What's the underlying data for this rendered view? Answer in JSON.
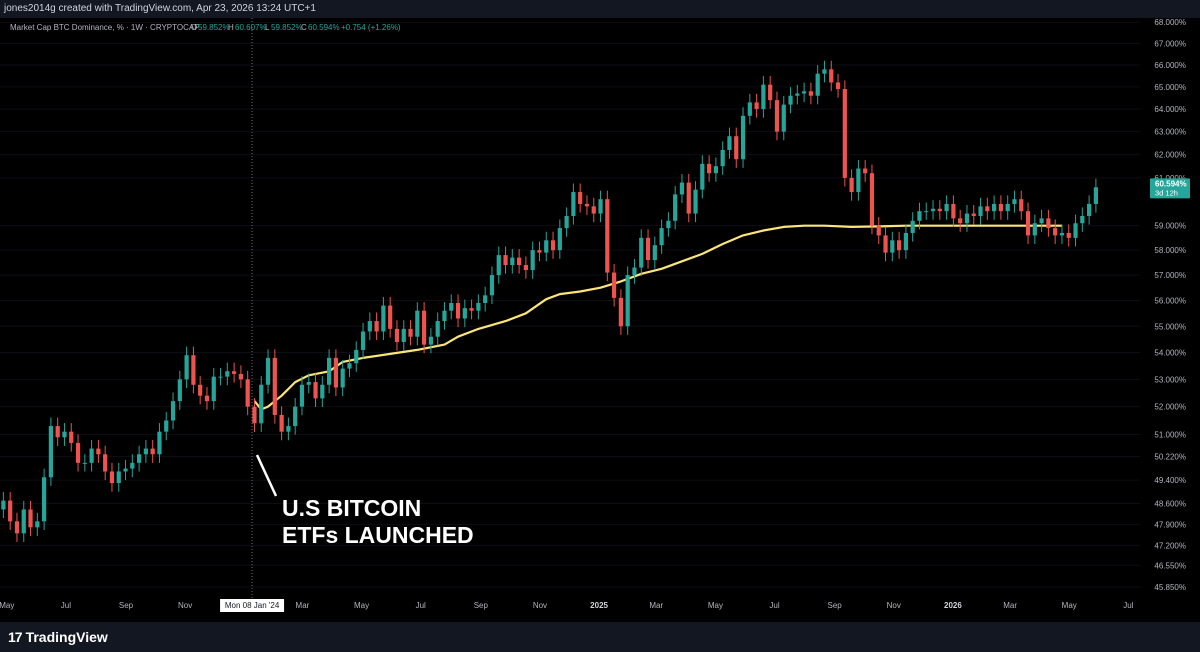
{
  "header": {
    "credit": "jones2014g created with TradingView.com, Apr 23, 2026 13:24 UTC+1"
  },
  "legend": {
    "title": "Market Cap BTC Dominance, %  · 1W · CRYPTOCAP",
    "o_label": "O",
    "o_value": "59.852%",
    "h_label": "H",
    "h_value": "60.607%",
    "l_label": "L",
    "l_value": "59.852%",
    "c_label": "C",
    "c_value": "60.594%",
    "change": "+0.754 (+1.26%)"
  },
  "price_tag": {
    "value": "60.594%",
    "countdown": "3d 12h"
  },
  "annotation": {
    "line1": "U.S BITCOIN",
    "line2": "ETFs LAUNCHED"
  },
  "crosshair": {
    "x_label": "Mon 08 Jan '24"
  },
  "footer": {
    "brand": "TradingView",
    "logo_mark": "17"
  },
  "colors": {
    "up": "#26a69a",
    "down": "#ef5350",
    "ma": "#fbe57a",
    "background": "#000000",
    "axis_text": "#b2b5be",
    "price_tag": "#26a69a"
  },
  "chart_data": {
    "type": "candlestick",
    "title": "",
    "ylabel": "",
    "xlabel": "",
    "y_scale": "log",
    "ylim": [
      45.5,
      68.2
    ],
    "xlim": [
      "2023-04-24",
      "2026-07-13"
    ],
    "y_ticks": [
      {
        "value": 68.0,
        "label": "68.000%"
      },
      {
        "value": 67.0,
        "label": "67.000%"
      },
      {
        "value": 66.0,
        "label": "66.000%"
      },
      {
        "value": 65.0,
        "label": "65.000%"
      },
      {
        "value": 64.0,
        "label": "64.000%"
      },
      {
        "value": 63.0,
        "label": "63.000%"
      },
      {
        "value": 62.0,
        "label": "62.000%"
      },
      {
        "value": 61.0,
        "label": "61.000%"
      },
      {
        "value": 59.0,
        "label": "59.000%"
      },
      {
        "value": 58.0,
        "label": "58.000%"
      },
      {
        "value": 57.0,
        "label": "57.000%"
      },
      {
        "value": 56.0,
        "label": "56.000%"
      },
      {
        "value": 55.0,
        "label": "55.000%"
      },
      {
        "value": 54.0,
        "label": "54.000%"
      },
      {
        "value": 53.0,
        "label": "53.000%"
      },
      {
        "value": 52.0,
        "label": "52.000%"
      },
      {
        "value": 51.0,
        "label": "51.000%"
      },
      {
        "value": 50.22,
        "label": "50.220%"
      },
      {
        "value": 49.4,
        "label": "49.400%"
      },
      {
        "value": 48.6,
        "label": "48.600%"
      },
      {
        "value": 47.9,
        "label": "47.900%"
      },
      {
        "value": 47.2,
        "label": "47.200%"
      },
      {
        "value": 46.55,
        "label": "46.550%"
      },
      {
        "value": 45.85,
        "label": "45.850%"
      }
    ],
    "x_ticks": [
      {
        "date": "2023-05-01",
        "label": "May"
      },
      {
        "date": "2023-07-01",
        "label": "Jul"
      },
      {
        "date": "2023-09-01",
        "label": "Sep"
      },
      {
        "date": "2023-11-01",
        "label": "Nov"
      },
      {
        "date": "2024-03-01",
        "label": "Mar"
      },
      {
        "date": "2024-05-01",
        "label": "May"
      },
      {
        "date": "2024-07-01",
        "label": "Jul"
      },
      {
        "date": "2024-09-01",
        "label": "Sep"
      },
      {
        "date": "2024-11-01",
        "label": "Nov"
      },
      {
        "date": "2025-01-01",
        "label": "2025",
        "bold": true
      },
      {
        "date": "2025-03-01",
        "label": "Mar"
      },
      {
        "date": "2025-05-01",
        "label": "May"
      },
      {
        "date": "2025-07-01",
        "label": "Jul"
      },
      {
        "date": "2025-09-01",
        "label": "Sep"
      },
      {
        "date": "2025-11-01",
        "label": "Nov"
      },
      {
        "date": "2026-01-01",
        "label": "2026",
        "bold": true
      },
      {
        "date": "2026-03-01",
        "label": "Mar"
      },
      {
        "date": "2026-05-01",
        "label": "May"
      },
      {
        "date": "2026-07-01",
        "label": "Jul"
      }
    ],
    "crosshair_date": "2024-01-08",
    "series": [
      {
        "kind": "candles",
        "first_week": "2023-04-24",
        "interval_days": 7,
        "close": [
          48.7,
          48.0,
          47.6,
          48.4,
          47.8,
          48.0,
          49.5,
          51.3,
          50.9,
          51.1,
          50.7,
          50.0,
          50.0,
          50.5,
          50.3,
          49.7,
          49.3,
          49.7,
          49.8,
          50.0,
          50.3,
          50.5,
          50.3,
          51.1,
          51.5,
          52.2,
          53.0,
          53.9,
          52.8,
          52.4,
          52.2,
          53.1,
          53.1,
          53.3,
          53.2,
          53.0,
          52.0,
          51.4,
          52.8,
          53.8,
          51.7,
          51.1,
          51.3,
          52.0,
          52.8,
          52.9,
          52.3,
          52.8,
          53.8,
          52.7,
          53.4,
          53.6,
          54.1,
          54.8,
          55.2,
          54.8,
          55.8,
          54.9,
          54.4,
          54.9,
          54.6,
          55.6,
          54.3,
          54.6,
          55.2,
          55.6,
          55.9,
          55.3,
          55.7,
          55.6,
          55.9,
          56.2,
          57.0,
          57.8,
          57.4,
          57.7,
          57.4,
          57.2,
          58.0,
          57.9,
          58.4,
          58.0,
          58.9,
          59.4,
          60.4,
          59.9,
          59.8,
          59.5,
          60.1,
          57.1,
          56.1,
          55.0,
          57.0,
          57.3,
          58.5,
          57.6,
          58.2,
          58.9,
          59.2,
          60.3,
          60.8,
          59.5,
          60.5,
          61.6,
          61.2,
          61.5,
          62.2,
          62.8,
          61.8,
          63.7,
          64.3,
          64.0,
          65.1,
          64.4,
          63.0,
          64.2,
          64.6,
          64.7,
          64.8,
          64.6,
          65.6,
          65.8,
          65.2,
          64.9,
          61.0,
          60.4,
          61.4,
          61.2,
          59.0,
          58.6,
          57.9,
          58.4,
          58.0,
          58.7,
          59.2,
          59.6,
          59.6,
          59.7,
          59.6,
          59.9,
          59.3,
          59.1,
          59.5,
          59.4,
          59.8,
          59.6,
          59.9,
          59.6,
          59.9,
          60.1,
          59.6,
          58.6,
          59.1,
          59.3,
          58.9,
          58.6,
          58.7,
          58.5,
          59.1,
          59.4,
          59.9,
          60.6
        ]
      },
      {
        "kind": "moving_average",
        "start_date": "2024-01-08",
        "points": [
          [
            "2024-01-08",
            52.2
          ],
          [
            "2024-01-15",
            51.9
          ],
          [
            "2024-01-22",
            52.0
          ],
          [
            "2024-02-05",
            52.4
          ],
          [
            "2024-02-19",
            52.9
          ],
          [
            "2024-03-04",
            53.15
          ],
          [
            "2024-03-25",
            53.3
          ],
          [
            "2024-04-08",
            53.65
          ],
          [
            "2024-04-29",
            53.8
          ],
          [
            "2024-05-27",
            53.95
          ],
          [
            "2024-06-24",
            54.1
          ],
          [
            "2024-07-22",
            54.3
          ],
          [
            "2024-08-05",
            54.6
          ],
          [
            "2024-08-26",
            54.9
          ],
          [
            "2024-09-23",
            55.2
          ],
          [
            "2024-10-14",
            55.5
          ],
          [
            "2024-11-04",
            56.05
          ],
          [
            "2024-11-18",
            56.25
          ],
          [
            "2024-12-09",
            56.35
          ],
          [
            "2024-12-30",
            56.5
          ],
          [
            "2025-01-20",
            56.75
          ],
          [
            "2025-02-10",
            57.05
          ],
          [
            "2025-03-03",
            57.25
          ],
          [
            "2025-03-24",
            57.55
          ],
          [
            "2025-04-14",
            57.85
          ],
          [
            "2025-05-05",
            58.25
          ],
          [
            "2025-05-26",
            58.6
          ],
          [
            "2025-06-16",
            58.8
          ],
          [
            "2025-07-07",
            58.95
          ],
          [
            "2025-07-28",
            59.0
          ],
          [
            "2025-08-18",
            59.0
          ],
          [
            "2025-09-15",
            58.95
          ],
          [
            "2025-10-13",
            58.97
          ],
          [
            "2025-11-10",
            59.0
          ],
          [
            "2025-12-08",
            59.0
          ],
          [
            "2026-01-05",
            59.0
          ],
          [
            "2026-02-02",
            59.0
          ],
          [
            "2026-03-02",
            59.0
          ],
          [
            "2026-04-20",
            59.0
          ]
        ]
      }
    ]
  }
}
